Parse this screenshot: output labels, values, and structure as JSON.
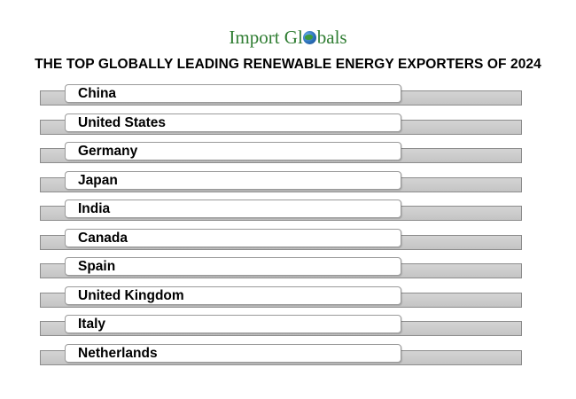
{
  "logo": {
    "part1": "Import Gl",
    "part2": "bals"
  },
  "title": "THE TOP GLOBALLY LEADING RENEWABLE ENERGY EXPORTERS OF 2024",
  "countries": [
    "China",
    "United States",
    "Germany",
    "Japan",
    "India",
    "Canada",
    "Spain",
    "United Kingdom",
    "Italy",
    "Netherlands"
  ],
  "colors": {
    "logo_text": "#2f7d32",
    "globe": "#2a6fb8",
    "track": "#c8c8c8",
    "pill": "#ffffff"
  },
  "icons": {
    "logo_globe": "globe-icon"
  }
}
